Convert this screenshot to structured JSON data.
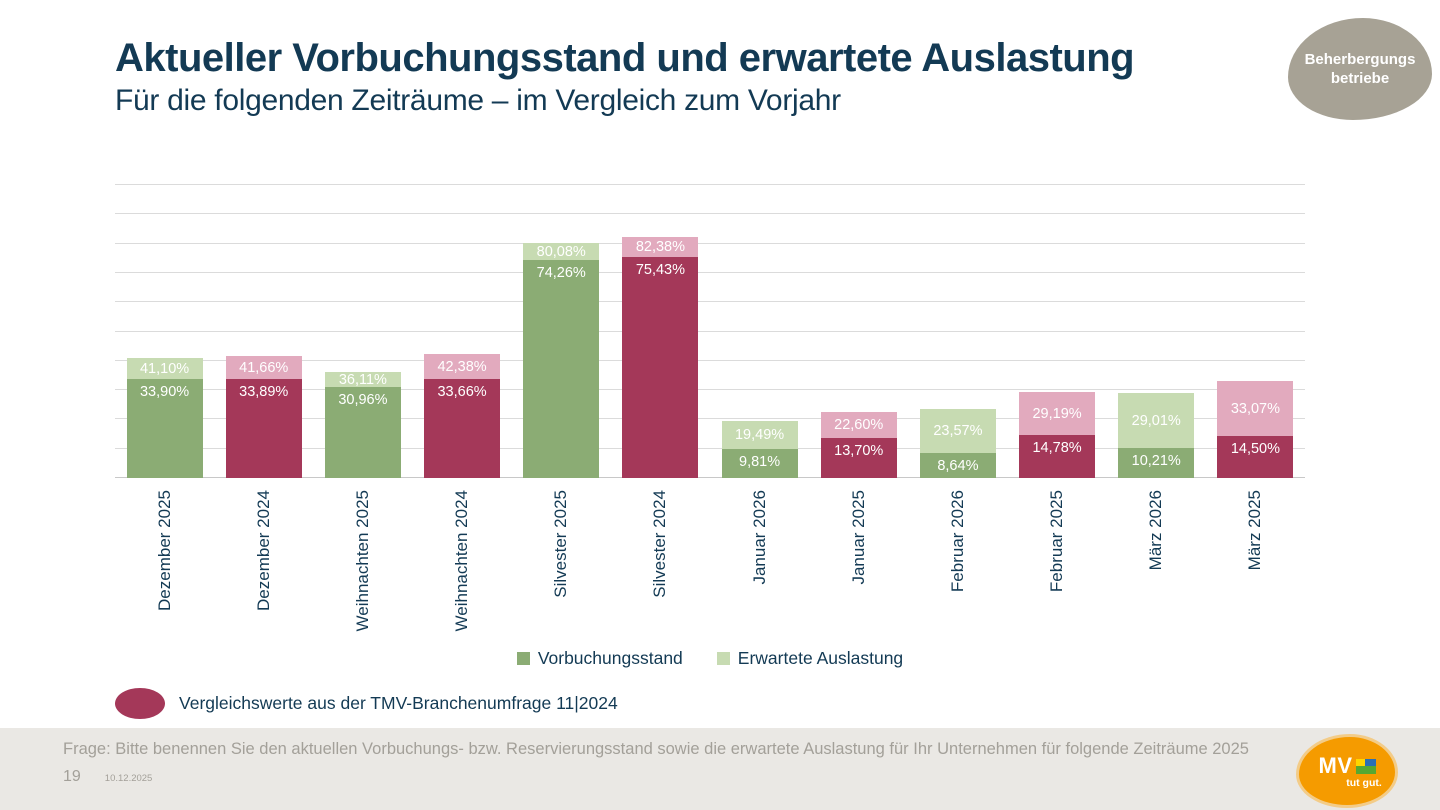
{
  "header": {
    "title": "Aktueller Vorbuchungsstand und erwartete Auslastung",
    "subtitle": "Für die folgenden Zeiträume – im Vergleich zum Vorjahr",
    "badge_line1": "Beherbergungs",
    "badge_line2": "betriebe"
  },
  "chart_data": {
    "type": "bar",
    "title": "Aktueller Vorbuchungsstand und erwartete Auslastung",
    "categories": [
      "Dezember 2025",
      "Dezember 2024",
      "Weihnachten 2025",
      "Weihnachten 2024",
      "Silvester 2025",
      "Silvester 2024",
      "Januar 2026",
      "Januar 2025",
      "Februar 2026",
      "Februar 2025",
      "März 2026",
      "März 2025"
    ],
    "groups": [
      "current",
      "comparison",
      "current",
      "comparison",
      "current",
      "comparison",
      "current",
      "comparison",
      "current",
      "comparison",
      "current",
      "comparison"
    ],
    "series": [
      {
        "name": "Vorbuchungsstand",
        "values": [
          33.9,
          33.89,
          30.96,
          33.66,
          74.26,
          75.43,
          9.81,
          13.7,
          8.64,
          14.78,
          10.21,
          14.5
        ]
      },
      {
        "name": "Erwartete Auslastung",
        "values": [
          41.1,
          41.66,
          36.11,
          42.38,
          80.08,
          82.38,
          19.49,
          22.6,
          23.57,
          29.19,
          29.01,
          33.07
        ]
      }
    ],
    "value_label_format": "0,00%",
    "xlabel": "",
    "ylabel": "",
    "ylim": [
      0,
      100
    ],
    "grid_step": 10,
    "grid": true,
    "legend_position": "bottom",
    "comparison_note": "Vergleichswerte aus der TMV-Branchenumfrage 11|2024"
  },
  "footer": {
    "question": "Frage: Bitte benennen Sie den aktuellen Vorbuchungs- bzw. Reservierungsstand sowie die erwartete Auslastung für Ihr Unternehmen für folgende Zeiträume 2025",
    "page_number": "19",
    "date": "10.12.2025",
    "logo_text": "MV",
    "logo_claim": "tut gut."
  },
  "colors": {
    "accent_navy": "#133A54",
    "bar_current_dark": "#8BAC74",
    "bar_current_light": "#C7DBB2",
    "bar_comparison_dark": "#A43859",
    "bar_comparison_light": "#E2AABE",
    "badge_bg": "#A7A295",
    "footer_bg": "#EAE8E4",
    "footer_text": "#A3A099",
    "logo_orange": "#F59B00",
    "grid_color": "#DBDBDB",
    "axis_color": "#C8C8C8"
  }
}
